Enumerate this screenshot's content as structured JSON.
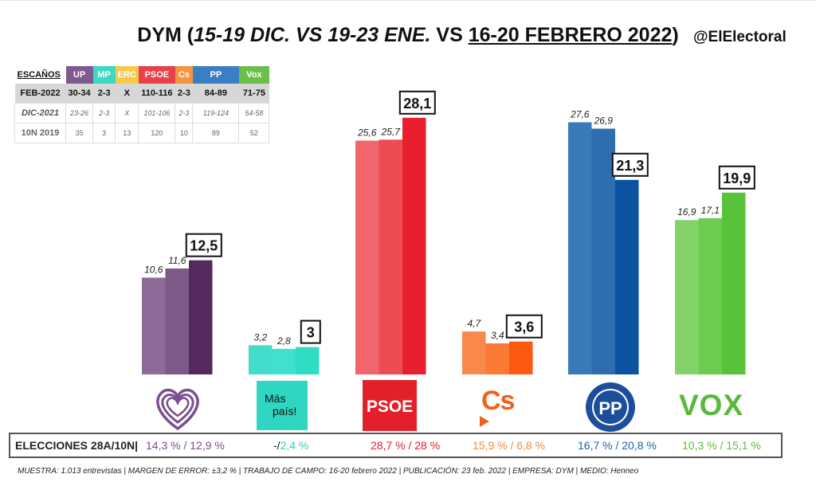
{
  "title": {
    "prefix": "DYM (",
    "italic": "15-19 DIC. VS 19-23 ENE.",
    "middle": " VS ",
    "underlined": "16-20 FEBRERO 2022",
    "suffix": ")"
  },
  "handle": "@ElElectoral",
  "seats_table": {
    "label": "ESCAÑOS",
    "parties": [
      {
        "name": "UP",
        "color": "#7f5a8e"
      },
      {
        "name": "MP",
        "color": "#3ed9c4"
      },
      {
        "name": "ERC",
        "color": "#f7c948"
      },
      {
        "name": "PSOE",
        "color": "#e8414a"
      },
      {
        "name": "Cs",
        "color": "#f5953e"
      },
      {
        "name": "PP",
        "color": "#3a7fc4"
      },
      {
        "name": "Vox",
        "color": "#6cc04a"
      }
    ],
    "rows": [
      {
        "label": "FEB-2022",
        "values": [
          "30-34",
          "2-3",
          "X",
          "110-116",
          "2-3",
          "84-89",
          "71-75"
        ]
      },
      {
        "label": "DIC-2021",
        "values": [
          "23-26",
          "2-3",
          "X",
          "101-106",
          "2-3",
          "119-124",
          "54-58"
        ]
      },
      {
        "label": "10N 2019",
        "values": [
          "35",
          "3",
          "13",
          "120",
          "10",
          "89",
          "52"
        ]
      }
    ]
  },
  "chart_data": {
    "type": "bar",
    "categories": [
      "UP",
      "Más País",
      "PSOE",
      "Cs",
      "PP",
      "VOX"
    ],
    "series": [
      {
        "values": [
          10.6,
          3.2,
          25.6,
          4.7,
          27.6,
          16.9
        ]
      },
      {
        "values": [
          11.6,
          2.8,
          25.7,
          3.4,
          26.9,
          17.1
        ]
      },
      {
        "values": [
          12.5,
          3,
          28.1,
          3.6,
          21.3,
          19.9
        ]
      }
    ],
    "labels": [
      [
        "10,6",
        "3,2",
        "25,6",
        "4,7",
        "27,6",
        "16,9"
      ],
      [
        "11,6",
        "2,8",
        "25,7",
        "3,4",
        "26,9",
        "17,1"
      ],
      [
        "12,5",
        "3",
        "28,1",
        "3,6",
        "21,3",
        "19,9"
      ]
    ],
    "colors": [
      [
        "#8c6b98",
        "#7b5a88",
        "#55285e"
      ],
      [
        "#44dccb",
        "#3fe0cc",
        "#2fdcc4"
      ],
      [
        "#f2656d",
        "#ee4c55",
        "#ea1f2d"
      ],
      [
        "#f9894a",
        "#fb7a34",
        "#fd5a11"
      ],
      [
        "#3a7ab8",
        "#2f6eae",
        "#0b52a0"
      ],
      [
        "#84d36a",
        "#6ccc4f",
        "#58c33a"
      ]
    ],
    "ylim": [
      0,
      30
    ]
  },
  "logos": {
    "mas_pais": [
      "Más",
      "país!"
    ],
    "psoe": "PSOE",
    "cs": "Cs",
    "pp": "PP",
    "vox": "VOX"
  },
  "elections": {
    "label": "ELECCIONES 28A/10N|",
    "results": [
      {
        "text": "14,3 % / 12,9 %",
        "color": "#7b4f8f"
      },
      {
        "text_a": "-/",
        "text_b": "2,4 %",
        "color_a": "#222222",
        "color": "#2fd0c0"
      },
      {
        "text": "28,7  % / 28 %",
        "color": "#e0202c"
      },
      {
        "text": "15,9 % / 6,8 %",
        "color": "#f58a3c"
      },
      {
        "text": "16,7 % / 20,8 %",
        "color": "#1f5fae"
      },
      {
        "text": "10,3 % / 15,1 %",
        "color": "#5cbf38"
      }
    ]
  },
  "footer": "MUESTRA: 1.013 entrevistas | MARGEN DE ERROR: ±3,2 % | TRABAJO DE CAMPO: 16-20 febrero 2022 | PUBLICACIÓN: 23 feb. 2022 | EMPRESA: DYM | MEDIO: Henneo"
}
